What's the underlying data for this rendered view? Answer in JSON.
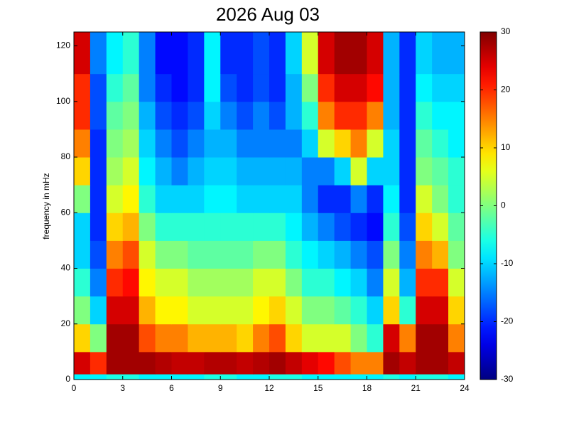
{
  "chart_data": {
    "type": "heatmap",
    "title": "2026 Aug 03",
    "ylabel": "frequency in mHz",
    "colormap": "jet",
    "xbins": [
      0,
      1,
      2,
      3,
      4,
      5,
      6,
      7,
      8,
      9,
      10,
      11,
      12,
      13,
      14,
      15,
      16,
      17,
      18,
      19,
      20,
      21,
      22,
      23,
      24
    ],
    "ybins": [
      0,
      2,
      10,
      20,
      30,
      40,
      50,
      60,
      70,
      80,
      90,
      100,
      110,
      125
    ],
    "values": [
      [
        -8,
        -8,
        -6,
        -6,
        -8,
        -8,
        -8,
        -8,
        -6,
        -6,
        -8,
        -8,
        -6,
        -6,
        -8,
        -8,
        -8,
        -8,
        -8,
        -6,
        -8,
        -6,
        -6,
        -8
      ],
      [
        25,
        20,
        28,
        28,
        28,
        27,
        26,
        26,
        27,
        27,
        26,
        27,
        28,
        26,
        24,
        22,
        18,
        15,
        15,
        28,
        26,
        28,
        28,
        26
      ],
      [
        10,
        0,
        28,
        28,
        18,
        15,
        15,
        12,
        12,
        12,
        10,
        15,
        18,
        10,
        5,
        5,
        5,
        0,
        -5,
        25,
        15,
        28,
        28,
        15
      ],
      [
        0,
        -10,
        25,
        25,
        12,
        8,
        8,
        5,
        5,
        5,
        5,
        8,
        10,
        5,
        0,
        0,
        -2,
        -5,
        -10,
        10,
        -5,
        25,
        25,
        10
      ],
      [
        -5,
        -15,
        20,
        22,
        8,
        5,
        5,
        2,
        2,
        2,
        2,
        5,
        5,
        0,
        -5,
        -5,
        -8,
        -10,
        -15,
        5,
        -12,
        20,
        20,
        5
      ],
      [
        -10,
        -18,
        15,
        18,
        5,
        0,
        0,
        -2,
        -2,
        -2,
        -2,
        0,
        0,
        -5,
        -8,
        -10,
        -12,
        -15,
        -18,
        0,
        -15,
        15,
        12,
        0
      ],
      [
        -10,
        -20,
        10,
        12,
        0,
        -5,
        -5,
        -5,
        -5,
        -5,
        -5,
        -5,
        -5,
        -8,
        -12,
        -15,
        -18,
        -20,
        -22,
        -5,
        -18,
        10,
        5,
        -2
      ],
      [
        0,
        -20,
        5,
        8,
        -5,
        -10,
        -10,
        -10,
        -8,
        -8,
        -10,
        -10,
        -10,
        -10,
        -15,
        -20,
        -20,
        -15,
        -20,
        -8,
        -20,
        5,
        0,
        -5
      ],
      [
        10,
        -20,
        2,
        5,
        -8,
        -12,
        -15,
        -12,
        -10,
        -10,
        -12,
        -12,
        -12,
        -12,
        -15,
        -15,
        -10,
        5,
        -10,
        -10,
        -20,
        0,
        -2,
        -5
      ],
      [
        15,
        -20,
        0,
        2,
        -10,
        -15,
        -18,
        -15,
        -12,
        -12,
        -15,
        -15,
        -15,
        -15,
        -10,
        5,
        10,
        15,
        5,
        -10,
        -20,
        -2,
        -5,
        -8
      ],
      [
        20,
        -18,
        -2,
        0,
        -12,
        -18,
        -20,
        -18,
        -10,
        -15,
        -18,
        -15,
        -18,
        -12,
        -5,
        15,
        20,
        20,
        15,
        -12,
        -20,
        -5,
        -8,
        -8
      ],
      [
        20,
        -18,
        -5,
        -2,
        -15,
        -20,
        -22,
        -20,
        -8,
        -18,
        -20,
        -18,
        -20,
        -12,
        0,
        20,
        25,
        25,
        22,
        -12,
        -20,
        -8,
        -10,
        -10
      ],
      [
        25,
        -15,
        -8,
        -5,
        -15,
        -22,
        -22,
        -20,
        -8,
        -20,
        -20,
        -18,
        -20,
        -10,
        5,
        25,
        28,
        28,
        25,
        -12,
        -20,
        -10,
        -12,
        -12
      ]
    ],
    "xlim": [
      0,
      24
    ],
    "xticks": [
      0,
      3,
      6,
      9,
      12,
      15,
      18,
      21,
      24
    ],
    "ylim": [
      0,
      125
    ],
    "yticks": [
      0,
      20,
      40,
      60,
      80,
      100,
      120
    ],
    "clim": [
      -30,
      30
    ],
    "cticks": [
      -30,
      -20,
      -10,
      0,
      10,
      20,
      30
    ]
  }
}
